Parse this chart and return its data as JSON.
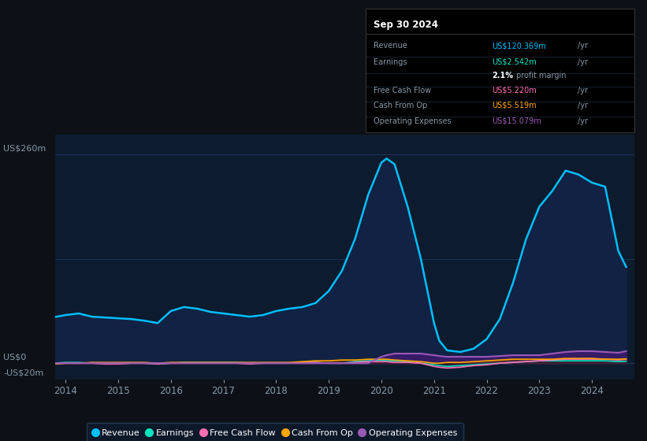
{
  "bg_color": "#0d1117",
  "chart_bg": "#0d1b2e",
  "title": "Sep 30 2024",
  "tooltip": {
    "Revenue_label": "Revenue",
    "Revenue_val": "US$120.369m",
    "Revenue_unit": "/yr",
    "Earnings_label": "Earnings",
    "Earnings_val": "US$2.542m",
    "Earnings_unit": "/yr",
    "profit_pct": "2.1%",
    "profit_text": "profit margin",
    "FCF_label": "Free Cash Flow",
    "FCF_val": "US$5.220m",
    "FCF_unit": "/yr",
    "CashOp_label": "Cash From Op",
    "CashOp_val": "US$5.519m",
    "CashOp_unit": "/yr",
    "OpEx_label": "Operating Expenses",
    "OpEx_val": "US$15.079m",
    "OpEx_unit": "/yr"
  },
  "years": [
    2013.75,
    2014.0,
    2014.25,
    2014.5,
    2014.75,
    2015.0,
    2015.25,
    2015.5,
    2015.75,
    2016.0,
    2016.25,
    2016.5,
    2016.75,
    2017.0,
    2017.25,
    2017.5,
    2017.75,
    2018.0,
    2018.25,
    2018.5,
    2018.75,
    2019.0,
    2019.25,
    2019.5,
    2019.75,
    2020.0,
    2020.1,
    2020.25,
    2020.5,
    2020.75,
    2021.0,
    2021.1,
    2021.25,
    2021.5,
    2021.75,
    2022.0,
    2022.25,
    2022.5,
    2022.75,
    2023.0,
    2023.25,
    2023.5,
    2023.75,
    2024.0,
    2024.25,
    2024.5,
    2024.65
  ],
  "revenue": [
    57,
    60,
    62,
    58,
    57,
    56,
    55,
    53,
    50,
    65,
    70,
    68,
    64,
    62,
    60,
    58,
    60,
    65,
    68,
    70,
    75,
    90,
    115,
    155,
    210,
    250,
    255,
    248,
    195,
    130,
    50,
    28,
    16,
    14,
    18,
    30,
    55,
    100,
    155,
    195,
    215,
    240,
    235,
    225,
    220,
    140,
    120
  ],
  "earnings": [
    0,
    1,
    1,
    0,
    0,
    0,
    0,
    0,
    -1,
    0,
    1,
    1,
    1,
    1,
    1,
    0,
    0,
    0,
    0,
    1,
    1,
    0,
    0,
    2,
    3,
    4,
    3,
    3,
    2,
    0,
    -2,
    -3,
    -4,
    -3,
    -2,
    -1,
    0,
    1,
    2,
    3,
    3,
    3,
    3,
    3,
    3,
    2,
    2.5
  ],
  "free_cash_flow": [
    -1,
    0,
    0,
    0,
    -1,
    -1,
    0,
    0,
    -1,
    0,
    0,
    0,
    0,
    0,
    0,
    -1,
    0,
    0,
    0,
    1,
    1,
    0,
    0,
    1,
    2,
    2,
    2,
    1,
    1,
    0,
    -4,
    -5,
    -6,
    -5,
    -3,
    -2,
    0,
    1,
    2,
    3,
    4,
    5,
    5,
    5,
    5,
    4,
    5
  ],
  "cash_from_op": [
    -1,
    0,
    0,
    1,
    1,
    1,
    1,
    1,
    0,
    1,
    1,
    1,
    1,
    1,
    1,
    1,
    1,
    1,
    1,
    2,
    3,
    3,
    4,
    4,
    5,
    5,
    5,
    4,
    3,
    2,
    0,
    0,
    1,
    1,
    2,
    3,
    4,
    5,
    5,
    5,
    5,
    6,
    6,
    6,
    5,
    5,
    5.5
  ],
  "operating_expenses": [
    0,
    0,
    0,
    0,
    0,
    0,
    0,
    0,
    0,
    0,
    0,
    0,
    0,
    0,
    0,
    0,
    0,
    0,
    0,
    0,
    0,
    0,
    0,
    0,
    0,
    8,
    10,
    12,
    12,
    12,
    10,
    9,
    8,
    8,
    8,
    8,
    9,
    10,
    10,
    10,
    12,
    14,
    15,
    15,
    14,
    13,
    15
  ],
  "revenue_color": "#00bfff",
  "revenue_fill": "#112244",
  "earnings_color": "#00e5c0",
  "free_cash_flow_color": "#ff6eb4",
  "cash_from_op_color": "#ffa500",
  "operating_expenses_color": "#9b59b6",
  "operating_expenses_fill": "#3d1a6e",
  "grid_color": "#1e3a5f",
  "text_color": "#ffffff",
  "dim_text_color": "#8899aa",
  "tooltip_bg": "#000000",
  "x_ticks": [
    2014,
    2015,
    2016,
    2017,
    2018,
    2019,
    2020,
    2021,
    2022,
    2023,
    2024
  ],
  "ylim": [
    -20,
    285
  ],
  "y_label_260": 260,
  "y_label_0": 0,
  "y_label_neg20": -20
}
